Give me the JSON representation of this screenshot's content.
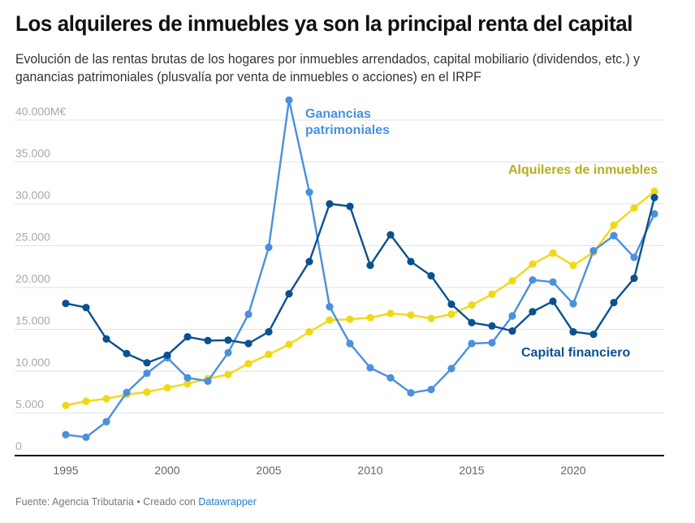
{
  "header": {
    "title": "Los alquileres de inmuebles ya son la principal renta del capital",
    "subtitle": "Evolución de las rentas brutas de los hogares por inmuebles arrendados, capital mobiliario (dividendos, etc.) y ganancias patrimoniales (plusvalía por venta de inmuebles o acciones) en el IRPF"
  },
  "footer": {
    "source": "Fuente: Agencia Tributaria • Creado con ",
    "tool": "Datawrapper"
  },
  "chart_data": {
    "type": "line",
    "title": "Los alquileres de inmuebles ya son la principal renta del capital",
    "xlabel": "",
    "ylabel": "M€",
    "x": [
      1995,
      1996,
      1997,
      1998,
      1999,
      2000,
      2001,
      2002,
      2003,
      2004,
      2005,
      2006,
      2007,
      2008,
      2009,
      2010,
      2011,
      2012,
      2013,
      2014,
      2015,
      2016,
      2017,
      2018,
      2019,
      2020,
      2021,
      2022,
      2023,
      2024
    ],
    "xlim": [
      1995,
      2024
    ],
    "ylim": [
      0,
      42500
    ],
    "grid": true,
    "legend": "inline-labels",
    "x_ticks": [
      1995,
      2000,
      2005,
      2010,
      2015,
      2020
    ],
    "x_tick_labels": [
      "1995",
      "2000",
      "2005",
      "2010",
      "2015",
      "2020"
    ],
    "y_ticks": [
      0,
      5000,
      10000,
      15000,
      20000,
      25000,
      30000,
      35000,
      40000
    ],
    "y_tick_labels": [
      "0",
      "5.000",
      "10.000",
      "15.000",
      "20.000",
      "25.000",
      "30.000",
      "35.000",
      "40.000M€"
    ],
    "series": [
      {
        "name": "Alquileres de inmuebles",
        "color": "#f0d817",
        "label_color": "#b8ae1c",
        "values": [
          5900,
          6400,
          6700,
          7200,
          7500,
          8000,
          8500,
          9100,
          9600,
          10900,
          12000,
          13200,
          14700,
          16100,
          16200,
          16400,
          16900,
          16700,
          16300,
          16800,
          17900,
          19200,
          20800,
          22800,
          24100,
          22650,
          24200,
          27450,
          29500,
          31500
        ]
      },
      {
        "name": "Capital financiero",
        "color": "#0a5190",
        "label_color": "#0a5190",
        "values": [
          18100,
          17600,
          13850,
          12100,
          11000,
          11900,
          14100,
          13650,
          13700,
          13300,
          14700,
          19250,
          23100,
          30000,
          29700,
          22650,
          26300,
          23100,
          21400,
          18000,
          15800,
          15400,
          14800,
          17100,
          18350,
          14700,
          14400,
          18200,
          21100,
          30750
        ]
      },
      {
        "name": "Ganancias patrimoniales",
        "color": "#4a90de",
        "label_color": "#4a90de",
        "label_lines": [
          "Ganancias",
          "patrimoniales"
        ],
        "values": [
          2400,
          2100,
          3950,
          7450,
          9750,
          11600,
          9200,
          8800,
          12200,
          16800,
          24800,
          42400,
          31400,
          17700,
          13300,
          10400,
          9200,
          7400,
          7800,
          10300,
          13300,
          13400,
          16600,
          20900,
          20650,
          18050,
          24400,
          26200,
          23600,
          28800
        ]
      }
    ]
  }
}
